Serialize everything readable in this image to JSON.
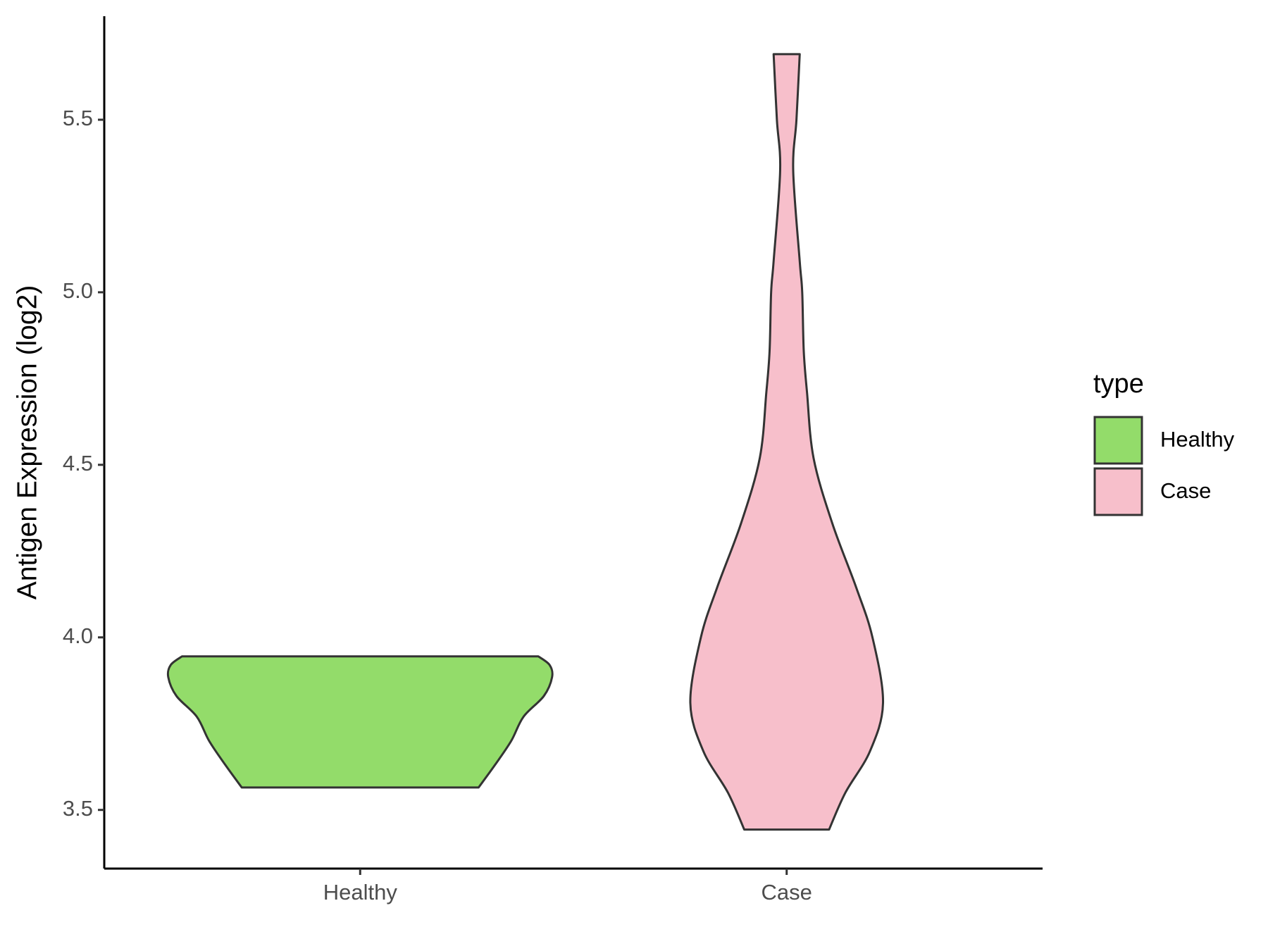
{
  "chart_data": {
    "type": "violin",
    "y_label": "Antigen Expression (log2)",
    "categories": [
      "Healthy",
      "Case"
    ],
    "series": [
      {
        "name": "Healthy",
        "color": "#93dc6a",
        "y": [
          3.565,
          3.63,
          3.7,
          3.77,
          3.83,
          3.885,
          3.92,
          3.945
        ],
        "widths": [
          0.617,
          0.702,
          0.787,
          0.851,
          0.957,
          1.0,
          0.987,
          0.928
        ]
      },
      {
        "name": "Case",
        "color": "#f7bfcb",
        "y": [
          3.443,
          3.55,
          3.67,
          3.81,
          4.0,
          4.145,
          4.33,
          4.52,
          4.71,
          4.83,
          5.0,
          5.09,
          5.353,
          5.5,
          5.69
        ],
        "widths": [
          0.221,
          0.306,
          0.434,
          0.502,
          0.447,
          0.362,
          0.238,
          0.14,
          0.106,
          0.089,
          0.081,
          0.068,
          0.034,
          0.051,
          0.068
        ]
      }
    ],
    "ylim": [
      3.33,
      5.8
    ],
    "yticks": [
      3.5,
      {
        "value": 4,
        "label": "4.0"
      },
      4.5,
      {
        "value": 5,
        "label": "5.0"
      },
      5.5
    ],
    "legend_title": "type",
    "legend": "right"
  }
}
